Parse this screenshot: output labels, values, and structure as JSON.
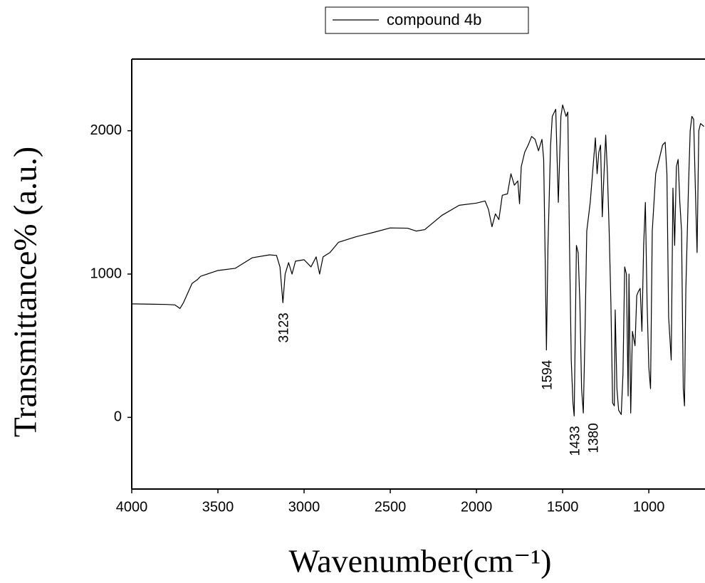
{
  "chart_data": {
    "type": "line",
    "x_label": "Wavenumber(cm⁻¹)",
    "y_label": "Transmittance% (a.u.)",
    "xlim": [
      4000,
      674
    ],
    "ylim": [
      -500,
      2500
    ],
    "xticks": [
      4000,
      3500,
      3000,
      2500,
      2000,
      1500,
      1000
    ],
    "yticks": [
      0,
      1000,
      2000
    ],
    "annotations": [
      3123,
      1594,
      1433,
      1380
    ],
    "x": [
      4000,
      3900,
      3800,
      3750,
      3720,
      3700,
      3650,
      3620,
      3600,
      3500,
      3400,
      3300,
      3200,
      3160,
      3140,
      3123,
      3110,
      3090,
      3070,
      3050,
      3000,
      2960,
      2930,
      2910,
      2890,
      2850,
      2800,
      2700,
      2600,
      2500,
      2400,
      2350,
      2300,
      2200,
      2100,
      2000,
      1950,
      1930,
      1910,
      1890,
      1870,
      1850,
      1820,
      1800,
      1780,
      1760,
      1750,
      1740,
      1720,
      1700,
      1680,
      1660,
      1640,
      1620,
      1610,
      1600,
      1594,
      1585,
      1570,
      1560,
      1540,
      1525,
      1510,
      1500,
      1480,
      1470,
      1460,
      1450,
      1440,
      1433,
      1420,
      1410,
      1400,
      1390,
      1380,
      1370,
      1360,
      1340,
      1320,
      1310,
      1300,
      1290,
      1280,
      1270,
      1260,
      1250,
      1240,
      1230,
      1220,
      1210,
      1200,
      1195,
      1185,
      1175,
      1160,
      1150,
      1140,
      1130,
      1120,
      1115,
      1105,
      1095,
      1080,
      1070,
      1060,
      1050,
      1040,
      1030,
      1020,
      1010,
      1000,
      990,
      980,
      960,
      940,
      920,
      905,
      895,
      885,
      870,
      860,
      850,
      840,
      830,
      820,
      810,
      800,
      793,
      785,
      770,
      760,
      750,
      740,
      730,
      720,
      710,
      700,
      680
    ],
    "series": [
      {
        "name": "compound 4b",
        "color": "#000000",
        "values": [
          792,
          790,
          788,
          785,
          760,
          800,
          935,
          960,
          985,
          1025,
          1040,
          1114,
          1134,
          1130,
          1050,
          800,
          1000,
          1080,
          1000,
          1090,
          1100,
          1050,
          1120,
          1000,
          1120,
          1150,
          1222,
          1260,
          1290,
          1322,
          1320,
          1300,
          1310,
          1410,
          1480,
          1495,
          1510,
          1450,
          1330,
          1420,
          1380,
          1550,
          1560,
          1700,
          1620,
          1650,
          1490,
          1750,
          1850,
          1900,
          1960,
          1940,
          1860,
          1940,
          1800,
          1000,
          470,
          1200,
          1900,
          2100,
          2150,
          1500,
          2100,
          2180,
          2100,
          2130,
          1200,
          400,
          100,
          10,
          1200,
          1150,
          800,
          200,
          30,
          600,
          1300,
          1500,
          1800,
          1950,
          1700,
          1850,
          1900,
          1400,
          1700,
          1970,
          1700,
          1300,
          800,
          100,
          80,
          750,
          200,
          50,
          20,
          300,
          1050,
          1000,
          150,
          1000,
          30,
          600,
          500,
          850,
          880,
          900,
          600,
          1200,
          1500,
          800,
          350,
          200,
          1300,
          1700,
          1800,
          1900,
          1920,
          1700,
          700,
          400,
          1600,
          1200,
          1750,
          1800,
          1500,
          1300,
          200,
          80,
          900,
          1600,
          2000,
          2100,
          2080,
          1600,
          1150,
          2000,
          2050,
          2030
        ]
      }
    ]
  }
}
